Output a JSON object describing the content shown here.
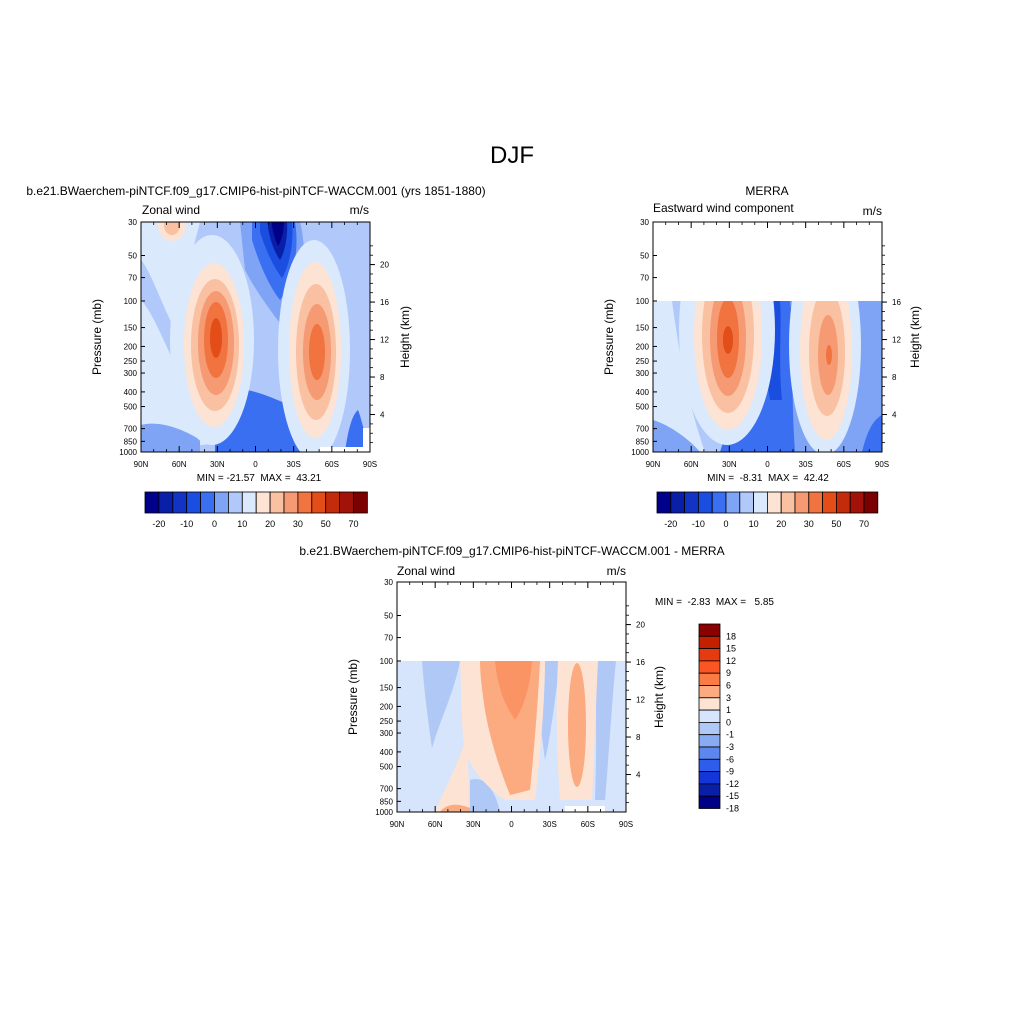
{
  "figure": {
    "title": "DJF"
  },
  "chart_data": [
    {
      "type": "heatmap",
      "title": "b.e21.BWaerchem-piNTCF.f09_g17.CMIP6-hist-piNTCF-WACCM.001 (yrs 1851-1880)",
      "left_label": "Zonal wind",
      "units": "m/s",
      "ylabel": "Pressure (mb)",
      "ylabel_right": "Height (km)",
      "stats": "MIN = -21.57  MAX =  43.21",
      "x_ticks": [
        "90N",
        "60N",
        "30N",
        "0",
        "30S",
        "60S",
        "90S"
      ],
      "y_ticks": [
        "30",
        "50",
        "70",
        "100",
        "150",
        "200",
        "250",
        "300",
        "400",
        "500",
        "700",
        "850",
        "1000"
      ],
      "height_ticks": [
        "4",
        "8",
        "12",
        "16",
        "20"
      ],
      "ylim": [
        1000,
        30
      ],
      "xlim": [
        90,
        -90
      ],
      "colorbar": {
        "labels": [
          "-20",
          "-10",
          "0",
          "10",
          "20",
          "30",
          "50",
          "70"
        ]
      },
      "features": [
        {
          "lat": 28,
          "p": 190,
          "value": 40
        },
        {
          "lat": -47,
          "p": 220,
          "value": 38
        },
        {
          "lat": 62,
          "p": 20,
          "value": 10
        },
        {
          "lat": -15,
          "p": 25,
          "value": -21
        }
      ]
    },
    {
      "type": "heatmap",
      "title": "MERRA",
      "left_label": "Eastward wind component",
      "units": "m/s",
      "ylabel": "Pressure (mb)",
      "ylabel_right": "Height (km)",
      "stats": "MIN =  -8.31  MAX =  42.42",
      "x_ticks": [
        "90N",
        "60N",
        "30N",
        "0",
        "30S",
        "60S",
        "90S"
      ],
      "y_ticks": [
        "30",
        "50",
        "70",
        "100",
        "150",
        "200",
        "250",
        "300",
        "400",
        "500",
        "700",
        "850",
        "1000"
      ],
      "height_ticks": [
        "4",
        "8",
        "12",
        "16"
      ],
      "data_top_p": 100,
      "colorbar": {
        "labels": [
          "-20",
          "-10",
          "0",
          "10",
          "20",
          "30",
          "50",
          "70"
        ]
      },
      "features": [
        {
          "lat": 30,
          "p": 200,
          "value": 42
        },
        {
          "lat": -48,
          "p": 220,
          "value": 35
        }
      ]
    },
    {
      "type": "heatmap",
      "title": "b.e21.BWaerchem-piNTCF.f09_g17.CMIP6-hist-piNTCF-WACCM.001 - MERRA",
      "left_label": "Zonal wind",
      "units": "m/s",
      "ylabel": "Pressure (mb)",
      "ylabel_right": "Height (km)",
      "stats": "MIN =  -2.83  MAX =   5.85",
      "x_ticks": [
        "90N",
        "60N",
        "30N",
        "0",
        "30S",
        "60S",
        "90S"
      ],
      "y_ticks": [
        "30",
        "50",
        "70",
        "100",
        "150",
        "200",
        "250",
        "300",
        "400",
        "500",
        "700",
        "850",
        "1000"
      ],
      "height_ticks": [
        "4",
        "8",
        "12",
        "16",
        "20"
      ],
      "data_top_p": 100,
      "colorbar": {
        "labels": [
          "18",
          "15",
          "12",
          "9",
          "6",
          "3",
          "1",
          "0",
          "-1",
          "-3",
          "-6",
          "-9",
          "-12",
          "-15",
          "-18"
        ]
      },
      "features": [
        {
          "lat": 0,
          "p": 200,
          "value": 5.8
        },
        {
          "lat": -50,
          "p": 300,
          "value": 5
        }
      ]
    }
  ],
  "colors": {
    "wind_colorbar": [
      "#00008b",
      "#0a1fa8",
      "#1233c4",
      "#1a4ee0",
      "#3a6ff2",
      "#7fa4f6",
      "#b0c9fa",
      "#dbe9fc",
      "#fde3d3",
      "#f9c0a2",
      "#f59a72",
      "#f07340",
      "#e24d18",
      "#c42b0a",
      "#a31208",
      "#7b0000"
    ],
    "diff_colorbar": [
      "#8b0000",
      "#c42000",
      "#e63a10",
      "#fb5524",
      "#fb7b45",
      "#fcaa80",
      "#fde3d3",
      "#d6e5fb",
      "#b0c8f6",
      "#89abf2",
      "#5c87ee",
      "#2f5deb",
      "#1436d8",
      "#0a1fa8",
      "#000087"
    ]
  }
}
